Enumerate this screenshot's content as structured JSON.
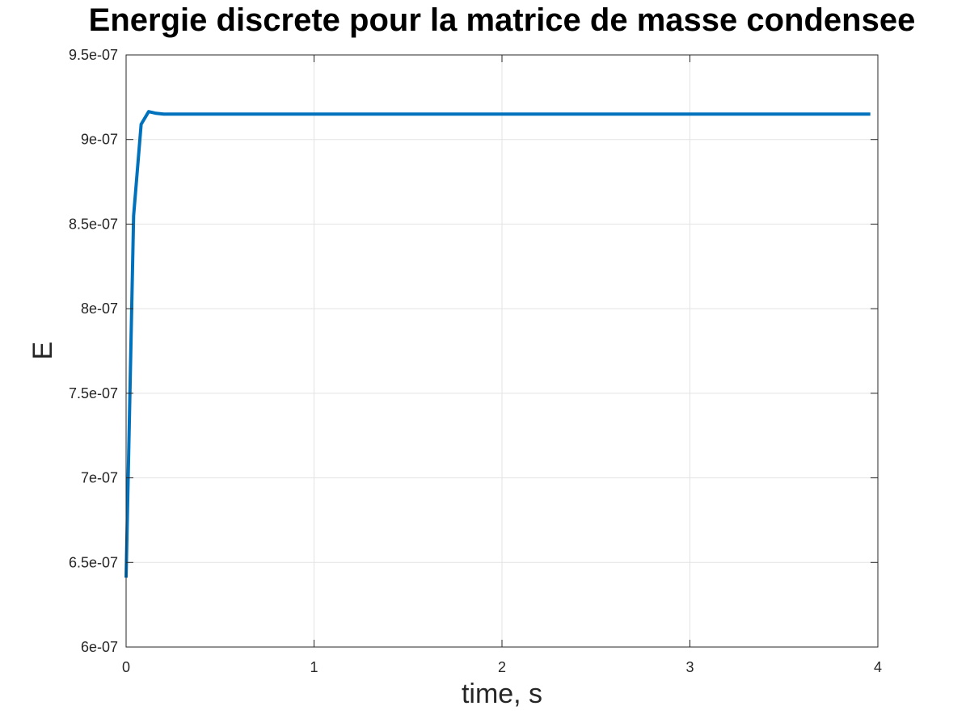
{
  "chart_data": {
    "type": "line",
    "title": "Energie discrete pour la matrice de masse condensee",
    "xlabel": "time, s",
    "ylabel": "E",
    "xlim": [
      0,
      4
    ],
    "ylim": [
      6e-07,
      9.5e-07
    ],
    "xticks": [
      0,
      1,
      2,
      3,
      4
    ],
    "xtick_labels": [
      "0",
      "1",
      "2",
      "3",
      "4"
    ],
    "yticks": [
      6e-07,
      6.5e-07,
      7e-07,
      7.5e-07,
      8e-07,
      8.5e-07,
      9e-07,
      9.5e-07
    ],
    "ytick_labels": [
      "6e-07",
      "6.5e-07",
      "7e-07",
      "7.5e-07",
      "8e-07",
      "8.5e-07",
      "9e-07",
      "9.5e-07"
    ],
    "grid": true,
    "series": [
      {
        "color": "#0072bd",
        "x": [
          0.0,
          0.04,
          0.08,
          0.12,
          0.16,
          0.2,
          0.3,
          0.5,
          1.0,
          1.5,
          2.0,
          2.5,
          3.0,
          3.5,
          3.96
        ],
        "y": [
          6.41e-07,
          8.55e-07,
          9.09e-07,
          9.165e-07,
          9.155e-07,
          9.15e-07,
          9.15e-07,
          9.15e-07,
          9.15e-07,
          9.15e-07,
          9.15e-07,
          9.15e-07,
          9.15e-07,
          9.15e-07,
          9.15e-07
        ]
      }
    ]
  }
}
